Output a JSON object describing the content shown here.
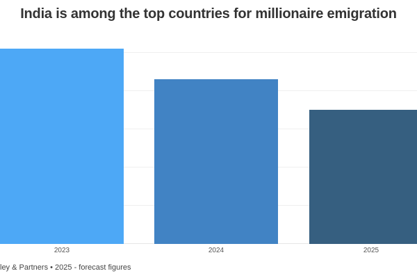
{
  "title": "India is among the top countries for millionaire emigration",
  "source": "ley & Partners • 2025 - forecast figures",
  "colors": [
    "#4da8f6",
    "#4183c4",
    "#365f80"
  ],
  "chart_data": {
    "type": "bar",
    "title": "India is among the top countries for millionaire emigration",
    "categories": [
      "2023",
      "2024",
      "2025"
    ],
    "values": [
      5100,
      4300,
      3500
    ],
    "xlabel": "",
    "ylabel": "",
    "ylim": [
      0,
      5000
    ],
    "grid": true,
    "gridlines": [
      1000,
      2000,
      3000,
      4000,
      5000
    ],
    "legend": null,
    "annotations": [
      "2025 - forecast figures"
    ]
  }
}
